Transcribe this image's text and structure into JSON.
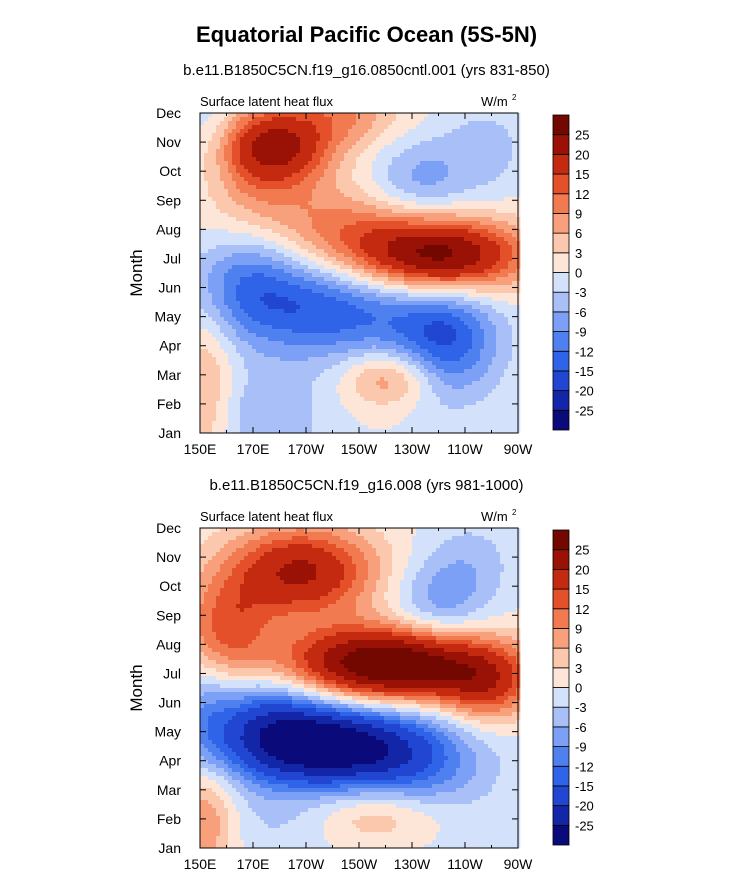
{
  "main_title": "Equatorial Pacific Ocean (5S-5N)",
  "chart_data": [
    {
      "type": "heatmap",
      "subtitle": "b.e11.B1850C5CN.f19_g16.0850cntl.001 (yrs 831-850)",
      "left_label": "Surface latent heat flux",
      "units": "W/m",
      "units_exp": "2",
      "ylabel": "Month",
      "xlabel": "",
      "x_ticks": [
        "150E",
        "170E",
        "170W",
        "150W",
        "130W",
        "110W",
        "90W"
      ],
      "y_ticks": [
        "Jan",
        "Feb",
        "Mar",
        "Apr",
        "May",
        "Jun",
        "Jul",
        "Aug",
        "Sep",
        "Oct",
        "Nov",
        "Dec"
      ],
      "xlim": [
        150,
        270
      ],
      "ylim": [
        1,
        12
      ],
      "levels": [
        -25,
        -20,
        -15,
        -12,
        -9,
        -6,
        -3,
        0,
        3,
        6,
        9,
        12,
        15,
        20,
        25
      ],
      "colors": [
        "#0a0a7a",
        "#1426a8",
        "#2146d2",
        "#2f63e8",
        "#4e80f0",
        "#7ba0f5",
        "#a8c0f7",
        "#d3e2fa",
        "#fde6d8",
        "#fbc8ae",
        "#f8a07c",
        "#f27a50",
        "#e4502a",
        "#c42a10",
        "#9a1206",
        "#720800"
      ],
      "features": [
        {
          "lon": 178,
          "month": 10.9,
          "value": 18,
          "sx": 15,
          "sy": 0.9
        },
        {
          "lon": 172,
          "month": 9.5,
          "value": 8,
          "sx": 18,
          "sy": 1.6
        },
        {
          "lon": 155,
          "month": 11.2,
          "value": -5,
          "sx": 8,
          "sy": 1.5
        },
        {
          "lon": 205,
          "month": 12.0,
          "value": 8,
          "sx": 15,
          "sy": 0.8
        },
        {
          "lon": 233,
          "month": 9.7,
          "value": -7,
          "sx": 13,
          "sy": 1.0
        },
        {
          "lon": 258,
          "month": 10.8,
          "value": -4,
          "sx": 12,
          "sy": 1.2
        },
        {
          "lon": 240,
          "month": 7.1,
          "value": 28,
          "sx": 22,
          "sy": 0.9
        },
        {
          "lon": 205,
          "month": 8.0,
          "value": 8,
          "sx": 18,
          "sy": 1.0
        },
        {
          "lon": 200,
          "month": 5.2,
          "value": -14,
          "sx": 25,
          "sy": 1.2
        },
        {
          "lon": 168,
          "month": 6.3,
          "value": -10,
          "sx": 15,
          "sy": 1.3
        },
        {
          "lon": 243,
          "month": 4.2,
          "value": -14,
          "sx": 14,
          "sy": 1.4
        },
        {
          "lon": 222,
          "month": 2.9,
          "value": 10,
          "sx": 12,
          "sy": 0.7
        },
        {
          "lon": 152,
          "month": 2.5,
          "value": 7,
          "sx": 8,
          "sy": 2.0
        },
        {
          "lon": 175,
          "month": 1.5,
          "value": -6,
          "sx": 15,
          "sy": 1.2
        }
      ]
    },
    {
      "type": "heatmap",
      "subtitle": "b.e11.B1850C5CN.f19_g16.008 (yrs 981-1000)",
      "left_label": "Surface latent heat flux",
      "units": "W/m",
      "units_exp": "2",
      "ylabel": "Month",
      "xlabel": "",
      "x_ticks": [
        "150E",
        "170E",
        "170W",
        "150W",
        "130W",
        "110W",
        "90W"
      ],
      "y_ticks": [
        "Jan",
        "Feb",
        "Mar",
        "Apr",
        "May",
        "Jun",
        "Jul",
        "Aug",
        "Sep",
        "Oct",
        "Nov",
        "Dec"
      ],
      "xlim": [
        150,
        270
      ],
      "ylim": [
        1,
        12
      ],
      "levels": [
        -25,
        -20,
        -15,
        -12,
        -9,
        -6,
        -3,
        0,
        3,
        6,
        9,
        12,
        15,
        20,
        25
      ],
      "colors": [
        "#0a0a7a",
        "#1426a8",
        "#2146d2",
        "#2f63e8",
        "#4e80f0",
        "#7ba0f5",
        "#a8c0f7",
        "#d3e2fa",
        "#fde6d8",
        "#fbc8ae",
        "#f8a07c",
        "#f27a50",
        "#e4502a",
        "#c42a10",
        "#9a1206",
        "#720800"
      ],
      "features": [
        {
          "lon": 222,
          "month": 7.3,
          "value": 33,
          "sx": 28,
          "sy": 0.9
        },
        {
          "lon": 188,
          "month": 10.5,
          "value": 21,
          "sx": 20,
          "sy": 1.1
        },
        {
          "lon": 258,
          "month": 6.5,
          "value": 12,
          "sx": 12,
          "sy": 0.9
        },
        {
          "lon": 160,
          "month": 8.5,
          "value": 12,
          "sx": 12,
          "sy": 1.2
        },
        {
          "lon": 240,
          "month": 9.3,
          "value": -8,
          "sx": 13,
          "sy": 1.1
        },
        {
          "lon": 252,
          "month": 10.9,
          "value": -4,
          "sx": 12,
          "sy": 1.0
        },
        {
          "lon": 198,
          "month": 4.5,
          "value": -27,
          "sx": 25,
          "sy": 1.0
        },
        {
          "lon": 175,
          "month": 5.5,
          "value": -12,
          "sx": 18,
          "sy": 1.2
        },
        {
          "lon": 230,
          "month": 3.5,
          "value": -10,
          "sx": 20,
          "sy": 1.5
        },
        {
          "lon": 220,
          "month": 2.2,
          "value": 10,
          "sx": 18,
          "sy": 0.8
        },
        {
          "lon": 180,
          "month": 1.8,
          "value": -3,
          "sx": 15,
          "sy": 1.2
        },
        {
          "lon": 152,
          "month": 2.0,
          "value": 9,
          "sx": 8,
          "sy": 1.5
        },
        {
          "lon": 152,
          "month": 5.5,
          "value": -4,
          "sx": 6,
          "sy": 1.5
        }
      ]
    }
  ]
}
